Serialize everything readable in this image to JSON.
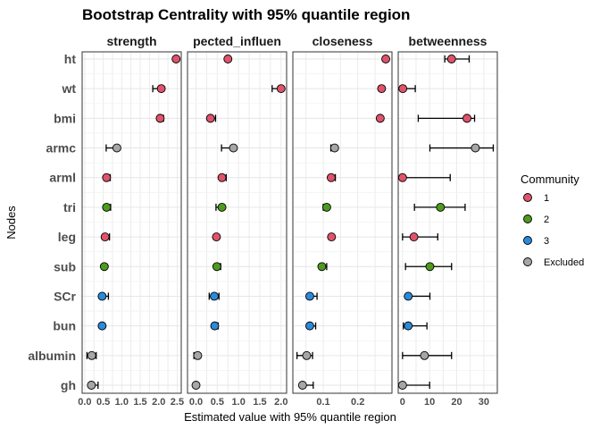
{
  "chart_data": {
    "type": "scatter",
    "title": "Bootstrap Centrality with 95% quantile region",
    "xlabel": "Estimated value with 95% quantile region",
    "ylabel": "Nodes",
    "nodes": [
      "ht",
      "wt",
      "bmi",
      "armc",
      "arml",
      "tri",
      "leg",
      "sub",
      "SCr",
      "bun",
      "albumin",
      "gh"
    ],
    "community": [
      "1",
      "1",
      "1",
      "Excluded",
      "1",
      "2",
      "1",
      "2",
      "3",
      "3",
      "Excluded",
      "Excluded"
    ],
    "legend": {
      "title": "Community",
      "placement": "right",
      "entries": [
        {
          "label": "1",
          "color": "#DF536B"
        },
        {
          "label": "2",
          "color": "#4E9A1E"
        },
        {
          "label": "3",
          "color": "#2A8ADB"
        },
        {
          "label": "Excluded",
          "color": "#A6A6A6"
        }
      ]
    },
    "grid": true,
    "panels": [
      {
        "name": "strength",
        "xlim": [
          -0.07,
          2.61
        ],
        "ticks": [
          0,
          0.5,
          1,
          1.5,
          2,
          2.5
        ],
        "tick_labels": [
          "0.0",
          "0.5",
          "1.0",
          "1.5",
          "2.0",
          "2.5"
        ],
        "values": [
          2.47,
          2.07,
          2.04,
          0.87,
          0.59,
          0.59,
          0.55,
          0.53,
          0.47,
          0.47,
          0.19,
          0.18
        ],
        "ci_low": [
          2.47,
          1.84,
          2.04,
          0.58,
          0.59,
          0.59,
          0.55,
          0.53,
          0.47,
          0.47,
          0.06,
          0.18
        ],
        "ci_high": [
          2.47,
          2.07,
          2.13,
          0.87,
          0.69,
          0.7,
          0.67,
          0.53,
          0.64,
          0.47,
          0.31,
          0.36
        ]
      },
      {
        "name": "pected_influen",
        "xlim": [
          -0.2,
          2.13
        ],
        "ticks": [
          0,
          0.5,
          1,
          1.5,
          2
        ],
        "tick_labels": [
          "0.0",
          "0.5",
          "1.0",
          "1.5",
          "2.0"
        ],
        "values": [
          0.75,
          2.0,
          0.34,
          0.88,
          0.61,
          0.61,
          0.48,
          0.49,
          0.43,
          0.44,
          0.04,
          0.0
        ],
        "ci_low": [
          0.75,
          1.79,
          0.34,
          0.6,
          0.61,
          0.47,
          0.48,
          0.49,
          0.31,
          0.44,
          -0.05,
          -0.05
        ],
        "ci_high": [
          0.75,
          2.0,
          0.46,
          0.88,
          0.71,
          0.61,
          0.48,
          0.58,
          0.54,
          0.52,
          0.04,
          0.0
        ]
      },
      {
        "name": "closeness",
        "xlim": [
          0.012,
          0.299
        ],
        "ticks": [
          0.1,
          0.2
        ],
        "tick_labels": [
          "0.1",
          "0.2"
        ],
        "values": [
          0.281,
          0.269,
          0.265,
          0.133,
          0.123,
          0.11,
          0.124,
          0.096,
          0.061,
          0.061,
          0.052,
          0.04
        ],
        "ci_low": [
          0.281,
          0.269,
          0.265,
          0.122,
          0.123,
          0.1,
          0.124,
          0.096,
          0.061,
          0.061,
          0.024,
          0.04
        ],
        "ci_high": [
          0.281,
          0.269,
          0.265,
          0.133,
          0.135,
          0.11,
          0.124,
          0.11,
          0.082,
          0.078,
          0.069,
          0.071
        ]
      },
      {
        "name": "betweenness",
        "xlim": [
          -1.6,
          35
        ],
        "ticks": [
          0,
          10,
          20,
          30
        ],
        "tick_labels": [
          "0",
          "10",
          "20",
          "30"
        ],
        "values": [
          18.1,
          0.1,
          23.8,
          26.9,
          0,
          14,
          4.2,
          10.1,
          2.1,
          2.1,
          8.1,
          0
        ],
        "ci_low": [
          15.6,
          0,
          5.8,
          10.1,
          0,
          4.4,
          0,
          1.1,
          2.1,
          0.3,
          0,
          0
        ],
        "ci_high": [
          24.6,
          4.7,
          26.6,
          33.5,
          17.6,
          23.1,
          13,
          18.1,
          10.1,
          9,
          18.1,
          10
        ]
      }
    ]
  }
}
